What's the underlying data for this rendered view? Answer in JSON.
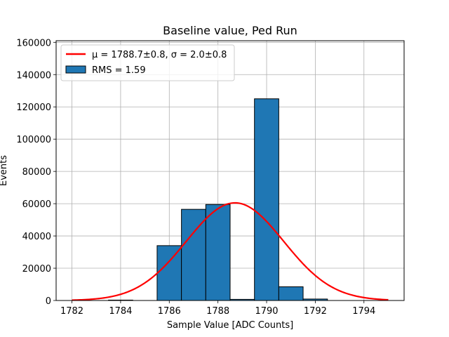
{
  "chart_data": {
    "type": "bar",
    "title": "Baseline value, Ped Run",
    "xlabel": "Sample Value [ADC Counts]",
    "ylabel": "Events",
    "xlim": [
      1781.35,
      1795.65
    ],
    "ylim": [
      0,
      161000
    ],
    "xticks": [
      1782,
      1784,
      1786,
      1788,
      1790,
      1792,
      1794
    ],
    "yticks": [
      0,
      20000,
      40000,
      60000,
      80000,
      100000,
      120000,
      140000,
      160000
    ],
    "grid": true,
    "legend_position": "upper-left",
    "histogram": {
      "name": "RMS = 1.59",
      "color": "#1f77b4",
      "edgecolor": "#000000",
      "bins": [
        {
          "x0": 1781.5,
          "x1": 1782.5,
          "count": 0
        },
        {
          "x0": 1782.5,
          "x1": 1783.5,
          "count": 0
        },
        {
          "x0": 1783.5,
          "x1": 1784.5,
          "count": 250
        },
        {
          "x0": 1784.5,
          "x1": 1785.5,
          "count": 0
        },
        {
          "x0": 1785.5,
          "x1": 1786.5,
          "count": 34000
        },
        {
          "x0": 1786.5,
          "x1": 1787.5,
          "count": 56500
        },
        {
          "x0": 1787.5,
          "x1": 1788.5,
          "count": 59500
        },
        {
          "x0": 1788.5,
          "x1": 1789.5,
          "count": 700
        },
        {
          "x0": 1789.5,
          "x1": 1790.5,
          "count": 125000
        },
        {
          "x0": 1790.5,
          "x1": 1791.5,
          "count": 8500
        },
        {
          "x0": 1791.5,
          "x1": 1792.5,
          "count": 900
        },
        {
          "x0": 1792.5,
          "x1": 1793.5,
          "count": 0
        },
        {
          "x0": 1793.5,
          "x1": 1794.5,
          "count": 0
        },
        {
          "x0": 1794.5,
          "x1": 1795.5,
          "count": 0
        }
      ]
    },
    "fit": {
      "name": "μ = 1788.7±0.8, σ = 2.0±0.8",
      "color": "#ff0000",
      "mu": 1788.7,
      "sigma": 2.0,
      "amplitude": 60500,
      "x_range": [
        1782,
        1795
      ]
    }
  }
}
